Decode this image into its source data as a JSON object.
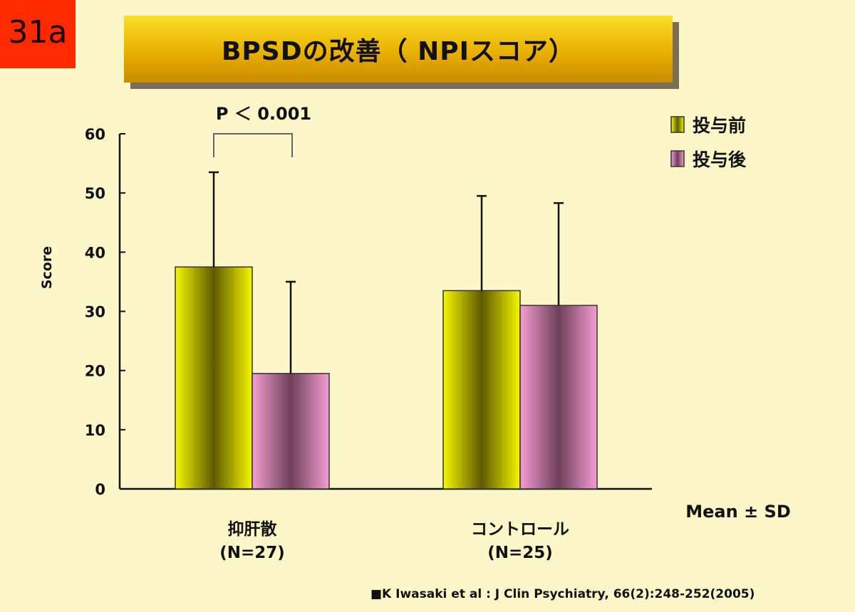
{
  "badge": "31a",
  "title": "BPSDの改善（ NPIスコア）",
  "source": "■K Iwasaki et al : J Clin Psychiatry, 66(2):248-252(2005)",
  "annotation": "Mean ± SD",
  "significance": "P ＜ 0.001",
  "colors": {
    "before": "#f5f500",
    "after": "#f39ad0",
    "background": "#fcf6c8"
  },
  "chart_data": {
    "type": "bar",
    "ylabel": "Score",
    "ylim": [
      0,
      60
    ],
    "yticks": [
      "0",
      "10",
      "20",
      "30",
      "40",
      "50",
      "60"
    ],
    "categories": [
      {
        "name": "抑肝散",
        "n": "(N=27)"
      },
      {
        "name": "コントロール",
        "n": "(N=25)"
      }
    ],
    "series": [
      {
        "name": "投与前",
        "values": [
          37.5,
          33.5
        ],
        "sd": [
          16,
          16
        ]
      },
      {
        "name": "投与後",
        "values": [
          19.5,
          31.0
        ],
        "sd": [
          15.5,
          17.3
        ]
      }
    ],
    "legend_position": "top-right"
  }
}
